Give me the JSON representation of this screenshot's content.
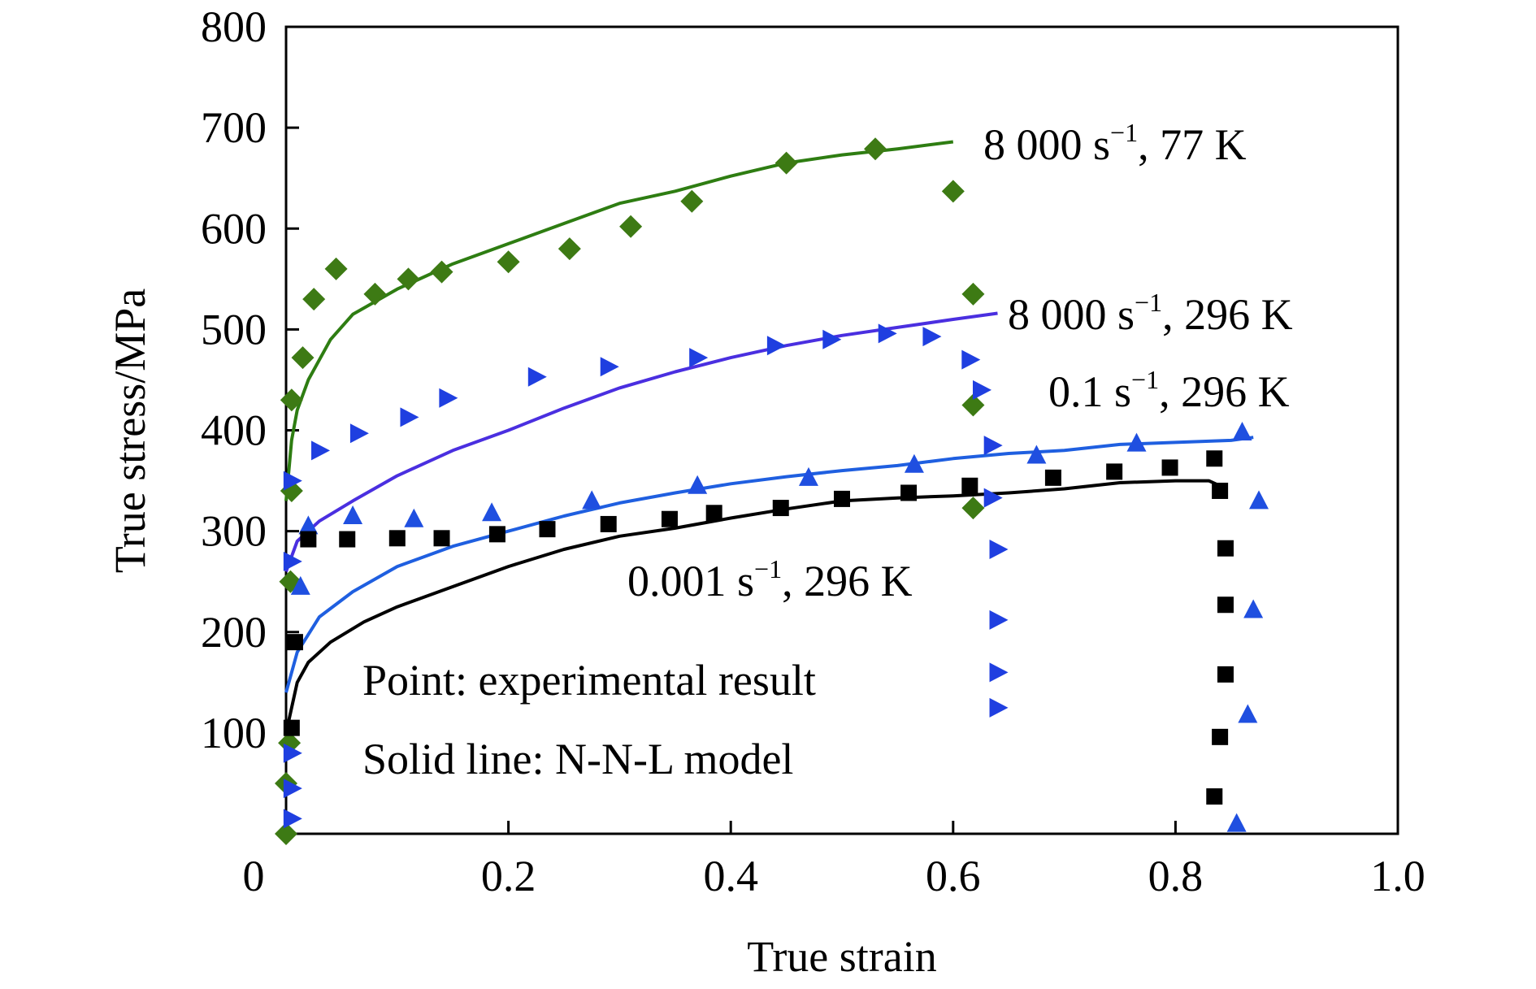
{
  "chart_data": {
    "type": "line",
    "xlabel": "True strain",
    "ylabel": "True stress/MPa",
    "xlim": [
      0,
      1.0
    ],
    "ylim": [
      0,
      800
    ],
    "x_ticks": [
      "0",
      "0.2",
      "0.4",
      "0.6",
      "0.8",
      "1.0"
    ],
    "y_ticks": [
      "100",
      "200",
      "300",
      "400",
      "500",
      "600",
      "700",
      "800"
    ],
    "grid": false,
    "notes": [
      "Point: experimental result",
      "Solid line: N-N-L model"
    ],
    "series": [
      {
        "label_main": "8 000 s",
        "label_sup": "−1",
        "label_tail": ", 77 K",
        "color": "#2e7d12",
        "marker_color": "#3d7a14",
        "marker": "diamond",
        "model": [
          [
            0.0,
            330
          ],
          [
            0.005,
            390
          ],
          [
            0.01,
            420
          ],
          [
            0.02,
            450
          ],
          [
            0.04,
            490
          ],
          [
            0.06,
            515
          ],
          [
            0.1,
            540
          ],
          [
            0.15,
            565
          ],
          [
            0.2,
            585
          ],
          [
            0.25,
            605
          ],
          [
            0.3,
            625
          ],
          [
            0.35,
            637
          ],
          [
            0.4,
            652
          ],
          [
            0.45,
            665
          ],
          [
            0.5,
            673
          ],
          [
            0.55,
            679
          ],
          [
            0.6,
            686
          ]
        ],
        "experimental": [
          [
            0.0,
            0
          ],
          [
            0.0,
            50
          ],
          [
            0.003,
            90
          ],
          [
            0.004,
            250
          ],
          [
            0.005,
            340
          ],
          [
            0.005,
            430
          ],
          [
            0.015,
            472
          ],
          [
            0.025,
            530
          ],
          [
            0.045,
            560
          ],
          [
            0.08,
            535
          ],
          [
            0.11,
            550
          ],
          [
            0.14,
            557
          ],
          [
            0.2,
            567
          ],
          [
            0.255,
            580
          ],
          [
            0.31,
            602
          ],
          [
            0.365,
            627
          ],
          [
            0.45,
            665
          ],
          [
            0.53,
            679
          ],
          [
            0.6,
            637
          ],
          [
            0.618,
            535
          ],
          [
            0.618,
            425
          ],
          [
            0.618,
            323
          ]
        ]
      },
      {
        "label_main": "8 000 s",
        "label_sup": "−1",
        "label_tail": ", 296 K",
        "color": "#4a2fe0",
        "marker_color": "#1f3fe0",
        "marker": "triangle-right",
        "model": [
          [
            0.0,
            260
          ],
          [
            0.01,
            290
          ],
          [
            0.03,
            310
          ],
          [
            0.06,
            330
          ],
          [
            0.1,
            355
          ],
          [
            0.15,
            380
          ],
          [
            0.2,
            400
          ],
          [
            0.25,
            422
          ],
          [
            0.3,
            442
          ],
          [
            0.35,
            458
          ],
          [
            0.4,
            472
          ],
          [
            0.45,
            484
          ],
          [
            0.5,
            494
          ],
          [
            0.55,
            502
          ],
          [
            0.6,
            510
          ],
          [
            0.64,
            516
          ]
        ],
        "experimental": [
          [
            0.005,
            15
          ],
          [
            0.005,
            45
          ],
          [
            0.005,
            80
          ],
          [
            0.005,
            270
          ],
          [
            0.005,
            350
          ],
          [
            0.03,
            380
          ],
          [
            0.065,
            397
          ],
          [
            0.11,
            413
          ],
          [
            0.145,
            432
          ],
          [
            0.225,
            453
          ],
          [
            0.29,
            463
          ],
          [
            0.37,
            472
          ],
          [
            0.44,
            484
          ],
          [
            0.49,
            490
          ],
          [
            0.54,
            496
          ],
          [
            0.58,
            493
          ],
          [
            0.615,
            470
          ],
          [
            0.625,
            440
          ],
          [
            0.635,
            385
          ],
          [
            0.635,
            333
          ],
          [
            0.64,
            282
          ],
          [
            0.64,
            212
          ],
          [
            0.64,
            160
          ],
          [
            0.64,
            125
          ]
        ]
      },
      {
        "label_main": "0.1 s",
        "label_sup": "−1",
        "label_tail": ", 296 K",
        "color": "#1f5fe0",
        "marker_color": "#1f4fe0",
        "marker": "triangle-up",
        "model": [
          [
            0.0,
            140
          ],
          [
            0.01,
            180
          ],
          [
            0.03,
            215
          ],
          [
            0.06,
            240
          ],
          [
            0.1,
            265
          ],
          [
            0.15,
            285
          ],
          [
            0.2,
            300
          ],
          [
            0.25,
            315
          ],
          [
            0.3,
            328
          ],
          [
            0.35,
            338
          ],
          [
            0.4,
            347
          ],
          [
            0.45,
            354
          ],
          [
            0.5,
            360
          ],
          [
            0.55,
            365
          ],
          [
            0.6,
            372
          ],
          [
            0.65,
            377
          ],
          [
            0.7,
            380
          ],
          [
            0.75,
            386
          ],
          [
            0.8,
            388
          ],
          [
            0.85,
            390
          ],
          [
            0.87,
            393
          ]
        ],
        "experimental": [
          [
            0.013,
            245
          ],
          [
            0.02,
            305
          ],
          [
            0.06,
            315
          ],
          [
            0.115,
            312
          ],
          [
            0.185,
            318
          ],
          [
            0.275,
            330
          ],
          [
            0.37,
            345
          ],
          [
            0.47,
            353
          ],
          [
            0.565,
            366
          ],
          [
            0.675,
            375
          ],
          [
            0.765,
            387
          ],
          [
            0.86,
            398
          ],
          [
            0.875,
            330
          ],
          [
            0.87,
            222
          ],
          [
            0.865,
            118
          ],
          [
            0.855,
            10
          ]
        ]
      },
      {
        "label_main": "0.001 s",
        "label_sup": "−1",
        "label_tail": ", 296 K",
        "color": "#000000",
        "marker_color": "#000000",
        "marker": "square",
        "model": [
          [
            0.0,
            100
          ],
          [
            0.01,
            150
          ],
          [
            0.02,
            170
          ],
          [
            0.04,
            190
          ],
          [
            0.07,
            210
          ],
          [
            0.1,
            225
          ],
          [
            0.15,
            245
          ],
          [
            0.2,
            265
          ],
          [
            0.25,
            282
          ],
          [
            0.3,
            295
          ],
          [
            0.35,
            303
          ],
          [
            0.4,
            313
          ],
          [
            0.45,
            322
          ],
          [
            0.5,
            330
          ],
          [
            0.55,
            333
          ],
          [
            0.6,
            335
          ],
          [
            0.65,
            338
          ],
          [
            0.7,
            342
          ],
          [
            0.75,
            348
          ],
          [
            0.8,
            350
          ],
          [
            0.83,
            350
          ],
          [
            0.84,
            345
          ]
        ],
        "experimental": [
          [
            0.005,
            105
          ],
          [
            0.008,
            190
          ],
          [
            0.02,
            292
          ],
          [
            0.055,
            292
          ],
          [
            0.1,
            293
          ],
          [
            0.14,
            293
          ],
          [
            0.19,
            297
          ],
          [
            0.235,
            302
          ],
          [
            0.29,
            307
          ],
          [
            0.345,
            312
          ],
          [
            0.385,
            318
          ],
          [
            0.445,
            323
          ],
          [
            0.5,
            332
          ],
          [
            0.56,
            338
          ],
          [
            0.615,
            345
          ],
          [
            0.69,
            353
          ],
          [
            0.745,
            359
          ],
          [
            0.795,
            363
          ],
          [
            0.835,
            372
          ],
          [
            0.84,
            340
          ],
          [
            0.845,
            283
          ],
          [
            0.845,
            227
          ],
          [
            0.845,
            158
          ],
          [
            0.84,
            96
          ],
          [
            0.835,
            37
          ]
        ]
      }
    ]
  }
}
